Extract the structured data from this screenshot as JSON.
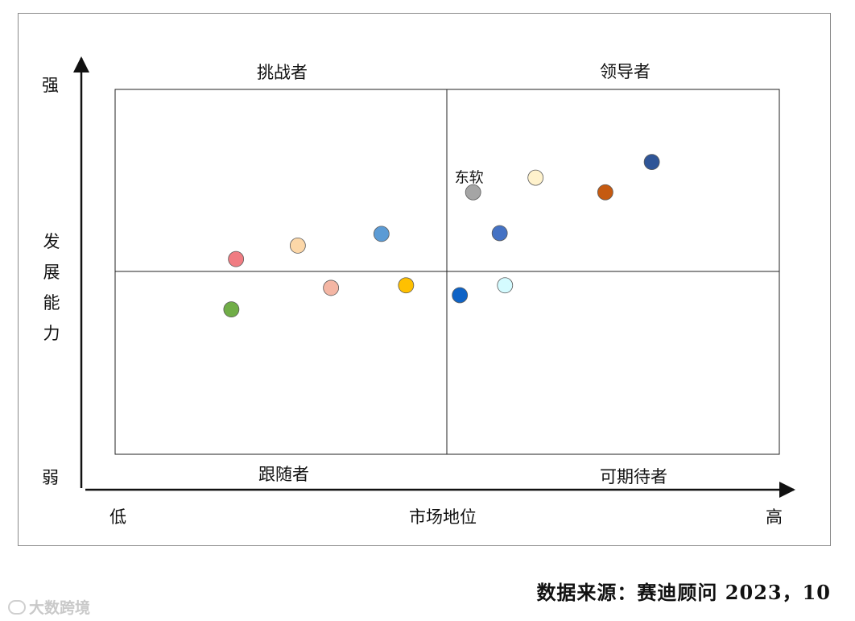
{
  "chart_data": {
    "type": "scatter",
    "title": "",
    "xlabel": "市场地位",
    "ylabel": "发展能力",
    "x_low_label": "低",
    "x_high_label": "高",
    "y_high_label": "强",
    "y_low_label": "弱",
    "xlim": [
      0,
      100
    ],
    "ylim": [
      0,
      100
    ],
    "quadrants": {
      "top_left": "挑战者",
      "top_right": "领导者",
      "bottom_left": "跟随者",
      "bottom_right": "可期待者"
    },
    "points": [
      {
        "x": 18.2,
        "y": 53.5,
        "color": "#f07c82",
        "label": ""
      },
      {
        "x": 27.5,
        "y": 57.2,
        "color": "#fcd7a8",
        "label": ""
      },
      {
        "x": 40.1,
        "y": 60.4,
        "color": "#5b9bd5",
        "label": ""
      },
      {
        "x": 17.5,
        "y": 39.7,
        "color": "#70ad47",
        "label": ""
      },
      {
        "x": 32.5,
        "y": 45.6,
        "color": "#f4b6a4",
        "label": ""
      },
      {
        "x": 43.8,
        "y": 46.3,
        "color": "#ffc000",
        "label": ""
      },
      {
        "x": 53.9,
        "y": 71.8,
        "color": "#a5a5a5",
        "label": "东软"
      },
      {
        "x": 63.3,
        "y": 75.8,
        "color": "#fff2cc",
        "label": ""
      },
      {
        "x": 57.9,
        "y": 60.6,
        "color": "#4472c4",
        "label": ""
      },
      {
        "x": 73.8,
        "y": 71.8,
        "color": "#c55a11",
        "label": ""
      },
      {
        "x": 80.8,
        "y": 80.1,
        "color": "#2f5597",
        "label": ""
      },
      {
        "x": 51.9,
        "y": 43.6,
        "color": "#0e63c6",
        "label": ""
      },
      {
        "x": 58.7,
        "y": 46.3,
        "color": "#d4fbff",
        "label": ""
      }
    ]
  },
  "source_text": "数据来源：赛迪顾问  2023，10",
  "watermark_text": "大数跨境"
}
